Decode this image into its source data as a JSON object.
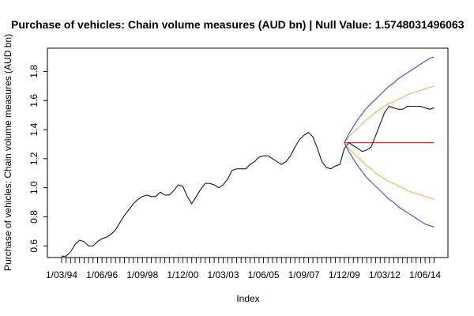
{
  "chart_data": {
    "type": "line",
    "title": "Purchase of vehicles: Chain volume measures (AUD bn) | Null Value: 1.5748031496063",
    "xlabel": "Index",
    "ylabel": "Purchase of vehicles: Chain volume measures (AUD bn)",
    "x_tick_labels": [
      "1/03/94",
      "1/06/96",
      "1/09/98",
      "1/12/00",
      "1/03/03",
      "1/06/05",
      "1/09/07",
      "1/12/09",
      "1/03/12",
      "1/06/14"
    ],
    "y_ticks": [
      0.6,
      0.8,
      1.0,
      1.2,
      1.4,
      1.6,
      1.8
    ],
    "y_tick_labels": [
      "0.6",
      "0.8",
      "1.0",
      "1.2",
      "1.4",
      "1.6",
      "1.8"
    ],
    "ylim": [
      0.52,
      1.96
    ],
    "grid": false,
    "series": [
      {
        "x": [
          "1/03/94",
          "1/06/94",
          "1/09/94",
          "1/12/94",
          "1/03/95",
          "1/06/95",
          "1/09/95",
          "1/12/95",
          "1/03/96",
          "1/06/96",
          "1/09/96",
          "1/12/96",
          "1/03/97",
          "1/06/97",
          "1/09/97",
          "1/12/97",
          "1/03/98",
          "1/06/98",
          "1/09/98",
          "1/12/98",
          "1/03/99",
          "1/06/99",
          "1/09/99",
          "1/12/99",
          "1/03/00",
          "1/06/00",
          "1/09/00",
          "1/12/00",
          "1/03/01",
          "1/06/01",
          "1/09/01",
          "1/12/01",
          "1/03/02",
          "1/06/02",
          "1/09/02",
          "1/12/02",
          "1/03/03",
          "1/06/03",
          "1/09/03",
          "1/12/03",
          "1/03/04",
          "1/06/04",
          "1/09/04",
          "1/12/04",
          "1/03/05",
          "1/06/05",
          "1/09/05",
          "1/12/05",
          "1/03/06",
          "1/06/06",
          "1/09/06",
          "1/12/06",
          "1/03/07",
          "1/06/07",
          "1/09/07",
          "1/12/07",
          "1/03/08",
          "1/06/08",
          "1/09/08",
          "1/12/08",
          "1/03/09",
          "1/06/09",
          "1/09/09",
          "1/12/09",
          "1/03/10",
          "1/06/10",
          "1/09/10",
          "1/12/10",
          "1/03/11",
          "1/06/11",
          "1/09/11",
          "1/12/11",
          "1/03/12",
          "1/06/12",
          "1/09/12",
          "1/12/12",
          "1/03/13",
          "1/06/13",
          "1/09/13",
          "1/12/13",
          "1/03/14",
          "1/06/14",
          "1/09/14",
          "1/12/14"
        ],
        "values": [
          0.53,
          0.53,
          0.56,
          0.61,
          0.64,
          0.63,
          0.6,
          0.6,
          0.63,
          0.65,
          0.66,
          0.68,
          0.71,
          0.76,
          0.81,
          0.85,
          0.89,
          0.92,
          0.94,
          0.95,
          0.94,
          0.94,
          0.97,
          0.95,
          0.95,
          0.98,
          1.02,
          1.01,
          0.94,
          0.89,
          0.94,
          0.99,
          1.03,
          1.03,
          1.02,
          1.0,
          1.02,
          1.06,
          1.12,
          1.13,
          1.13,
          1.13,
          1.16,
          1.18,
          1.21,
          1.22,
          1.22,
          1.2,
          1.18,
          1.16,
          1.18,
          1.22,
          1.28,
          1.33,
          1.36,
          1.38,
          1.35,
          1.27,
          1.18,
          1.14,
          1.13,
          1.15,
          1.16,
          1.27,
          1.31,
          1.29,
          1.27,
          1.25,
          1.26,
          1.28,
          1.36,
          1.44,
          1.52,
          1.56,
          1.55,
          1.54,
          1.54,
          1.56,
          1.56,
          1.56,
          1.56,
          1.55,
          1.54,
          1.55
        ],
        "color": "#000000"
      },
      {
        "x": [
          "1/12/09",
          "1/12/14"
        ],
        "values": [
          1.31,
          1.31
        ],
        "color": "#ff0000"
      },
      {
        "x": [
          "1/12/09",
          "1/03/10",
          "1/06/10",
          "1/09/10",
          "1/12/10",
          "1/03/11",
          "1/06/11",
          "1/09/11",
          "1/12/11",
          "1/03/12",
          "1/06/12",
          "1/09/12",
          "1/12/12",
          "1/03/13",
          "1/06/13",
          "1/09/13",
          "1/12/13",
          "1/03/14",
          "1/06/14",
          "1/09/14",
          "1/12/14"
        ],
        "values": [
          1.31,
          1.35,
          1.38,
          1.41,
          1.44,
          1.47,
          1.49,
          1.52,
          1.54,
          1.56,
          1.58,
          1.59,
          1.61,
          1.62,
          1.64,
          1.65,
          1.66,
          1.67,
          1.68,
          1.69,
          1.7
        ],
        "color": "#f5a742"
      },
      {
        "x": [
          "1/12/09",
          "1/03/10",
          "1/06/10",
          "1/09/10",
          "1/12/10",
          "1/03/11",
          "1/06/11",
          "1/09/11",
          "1/12/11",
          "1/03/12",
          "1/06/12",
          "1/09/12",
          "1/12/12",
          "1/03/13",
          "1/06/13",
          "1/09/13",
          "1/12/13",
          "1/03/14",
          "1/06/14",
          "1/09/14",
          "1/12/14"
        ],
        "values": [
          1.31,
          1.27,
          1.24,
          1.21,
          1.18,
          1.15,
          1.13,
          1.1,
          1.08,
          1.06,
          1.04,
          1.03,
          1.01,
          1.0,
          0.98,
          0.97,
          0.96,
          0.95,
          0.94,
          0.93,
          0.92
        ],
        "color": "#f5a742"
      },
      {
        "x": [
          "1/12/09",
          "1/03/10",
          "1/06/10",
          "1/09/10",
          "1/12/10",
          "1/03/11",
          "1/06/11",
          "1/09/11",
          "1/12/11",
          "1/03/12",
          "1/06/12",
          "1/09/12",
          "1/12/12",
          "1/03/13",
          "1/06/13",
          "1/09/13",
          "1/12/13",
          "1/03/14",
          "1/06/14",
          "1/09/14",
          "1/12/14"
        ],
        "values": [
          1.31,
          1.37,
          1.42,
          1.47,
          1.51,
          1.55,
          1.58,
          1.61,
          1.64,
          1.67,
          1.7,
          1.72,
          1.75,
          1.77,
          1.79,
          1.81,
          1.83,
          1.85,
          1.87,
          1.89,
          1.9
        ],
        "color": "#3333dd"
      },
      {
        "x": [
          "1/12/09",
          "1/03/10",
          "1/06/10",
          "1/09/10",
          "1/12/10",
          "1/03/11",
          "1/06/11",
          "1/09/11",
          "1/12/11",
          "1/03/12",
          "1/06/12",
          "1/09/12",
          "1/12/12",
          "1/03/13",
          "1/06/13",
          "1/09/13",
          "1/12/13",
          "1/03/14",
          "1/06/14",
          "1/09/14",
          "1/12/14"
        ],
        "values": [
          1.31,
          1.25,
          1.2,
          1.15,
          1.11,
          1.07,
          1.04,
          1.01,
          0.98,
          0.95,
          0.92,
          0.9,
          0.87,
          0.85,
          0.83,
          0.81,
          0.79,
          0.77,
          0.75,
          0.74,
          0.73
        ],
        "color": "#3333dd"
      }
    ]
  }
}
